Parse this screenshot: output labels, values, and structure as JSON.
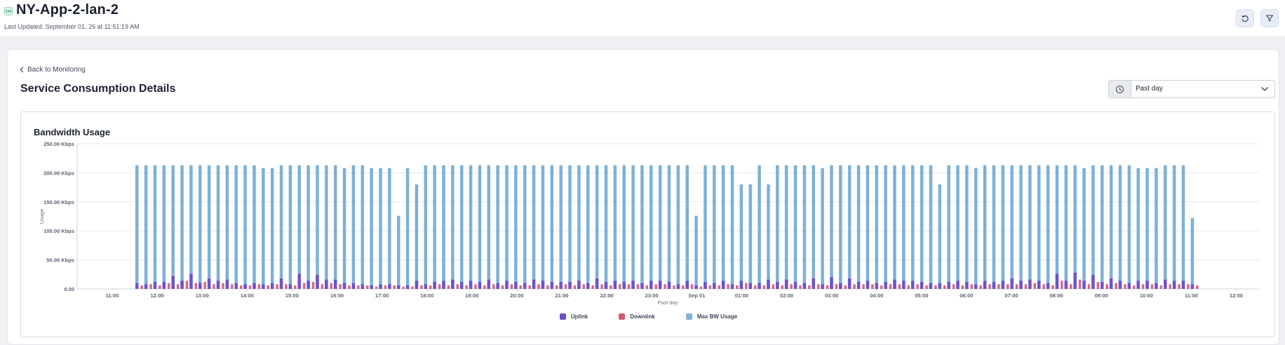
{
  "header": {
    "status_icon": "wireless-signal-icon",
    "title": "NY-App-2-lan-2",
    "last_updated": "Last Updated: September 01, 26 at 11:51:19 AM",
    "refresh_icon": "refresh-icon",
    "filter_icon": "filter-icon"
  },
  "page": {
    "back_label": "Back to Monitoring",
    "title": "Service Consumption Details",
    "range_select": {
      "value": "Past day",
      "icon": "clock-icon"
    }
  },
  "colors": {
    "uplink": "#6a4fc9",
    "downlink": "#d45876",
    "max_bw": "#7fb0d6"
  },
  "chart_data": {
    "type": "bar",
    "title": "Bandwidth Usage",
    "xlabel": "Past day",
    "ylabel": "Usage",
    "ylim": [
      0,
      250
    ],
    "y_ticks": [
      "0.00",
      "50.00 Kbps",
      "100.00 Kbps",
      "150.00 Kbps",
      "200.00 Kbps",
      "250.00 Kbps"
    ],
    "x_ticks": [
      "11:00",
      "12:00",
      "13:00",
      "14:00",
      "15:00",
      "16:00",
      "17:00",
      "18:00",
      "19:00",
      "20:00",
      "21:00",
      "22:00",
      "23:00",
      "Sep 01",
      "01:00",
      "02:00",
      "03:00",
      "04:00",
      "05:00",
      "06:00",
      "07:00",
      "08:00",
      "09:00",
      "10:00",
      "11:00",
      "12:00"
    ],
    "x_start": "2026-08-31T10:30",
    "interval_minutes": 12,
    "grid": true,
    "legend_position": "bottom",
    "series": [
      {
        "name": "Uplink",
        "values": [
          0,
          0,
          0,
          0,
          0,
          0,
          0,
          0,
          0,
          0,
          0,
          10,
          0,
          12,
          0,
          22,
          0,
          26,
          0,
          18,
          0,
          16,
          0,
          0,
          0,
          0,
          0,
          0,
          0,
          0,
          0,
          0,
          0,
          0,
          0,
          0,
          0,
          0,
          0,
          0,
          0,
          0,
          0,
          0,
          0,
          0,
          12,
          0,
          0,
          0,
          0,
          0,
          0,
          0,
          14,
          0,
          0,
          0,
          0,
          0,
          0,
          0,
          0,
          0,
          0,
          18,
          0,
          0,
          0,
          0,
          0,
          0,
          0,
          0,
          0,
          0,
          10,
          0,
          0,
          0,
          0,
          0,
          0,
          0,
          0,
          0,
          10,
          0,
          8,
          0,
          0,
          0,
          0,
          0,
          14,
          0,
          0,
          0,
          0,
          0,
          0,
          0,
          0,
          0,
          0,
          0,
          0,
          0,
          0,
          0,
          0,
          0,
          0,
          0,
          0,
          0,
          0,
          0,
          0,
          0,
          0,
          0,
          0,
          12,
          0,
          12,
          0,
          0,
          0,
          0,
          0,
          0,
          0,
          0,
          0,
          0,
          0,
          0,
          0,
          0,
          0,
          0,
          0,
          0,
          0,
          0,
          0,
          0,
          0,
          0,
          0,
          0,
          0,
          0,
          0,
          0,
          0,
          0,
          0,
          0,
          0,
          0,
          0,
          26,
          0,
          0,
          0,
          0,
          0,
          0,
          0,
          0,
          0,
          10,
          0,
          12,
          0,
          0,
          0,
          0,
          0,
          0,
          0,
          0,
          0,
          0,
          0,
          0,
          0,
          0,
          0,
          0,
          0,
          0,
          0,
          0,
          0,
          0,
          0,
          0,
          0,
          0,
          0,
          0,
          0,
          0,
          0,
          0,
          0,
          0,
          0,
          0,
          0,
          0,
          0,
          0,
          0,
          0,
          0,
          0,
          0,
          0,
          0,
          0,
          0,
          0,
          0,
          0,
          0,
          0,
          0,
          0,
          0,
          0,
          0,
          0,
          0,
          0,
          0,
          0,
          0,
          0,
          0,
          0,
          0,
          0,
          0,
          0,
          0,
          0,
          0,
          0,
          0,
          0,
          0,
          0,
          0,
          0,
          0,
          0,
          0,
          0,
          0,
          0,
          0,
          0,
          0,
          0,
          0,
          0,
          0,
          0,
          0,
          0,
          0,
          0,
          0,
          0
        ]
      },
      {
        "name": "Downlink",
        "values": [
          0,
          0,
          0,
          0,
          0,
          0,
          0,
          0,
          0,
          0,
          0,
          0,
          0,
          0,
          0,
          0,
          0,
          0,
          0,
          0,
          0,
          0,
          0,
          0,
          0,
          0,
          0,
          0,
          0,
          0,
          0,
          0,
          0,
          0,
          0,
          0,
          0,
          0,
          0,
          0,
          0,
          0,
          0,
          0,
          0,
          0,
          0,
          0,
          0,
          0,
          0,
          0,
          0,
          0,
          0,
          0,
          0,
          0,
          0,
          0,
          0,
          0,
          0,
          0,
          0,
          0,
          0,
          0,
          0,
          0,
          0,
          0,
          0,
          0,
          0,
          0,
          0,
          0,
          0,
          0,
          0,
          0,
          0,
          0,
          0,
          0,
          0,
          0,
          0,
          0,
          0,
          0,
          0,
          0,
          0,
          0,
          0,
          0,
          0,
          0,
          0,
          0,
          0,
          0,
          0,
          0,
          0,
          0,
          0,
          0,
          0,
          0,
          0,
          0,
          0,
          0,
          0,
          0,
          0,
          0,
          0,
          0,
          0,
          0,
          0,
          0,
          0,
          0,
          0,
          0,
          0,
          0,
          0,
          0,
          0,
          0,
          0,
          0,
          0,
          0,
          0,
          0,
          0,
          0,
          0,
          0,
          0,
          0,
          0,
          0,
          0,
          0,
          0,
          0,
          0,
          0,
          0,
          0,
          0,
          0,
          0,
          0,
          0,
          0,
          0,
          0,
          0,
          0,
          0,
          0,
          0,
          0,
          0,
          0,
          0,
          0,
          0,
          0,
          0,
          0,
          0,
          0,
          0,
          0,
          0,
          0,
          0,
          0,
          0,
          0,
          0,
          0,
          0,
          0,
          0,
          0,
          0,
          0,
          0,
          0,
          0,
          0,
          0,
          0,
          0,
          0,
          0,
          0,
          0,
          0,
          0,
          0,
          0,
          0,
          0,
          0,
          0,
          0,
          0,
          0,
          0,
          0,
          0,
          0,
          0,
          0,
          0,
          0,
          0,
          0,
          0,
          0,
          0,
          0,
          0,
          0,
          0,
          0,
          0,
          0,
          0,
          0,
          0,
          0,
          0,
          0,
          0,
          0,
          0,
          0,
          0,
          0,
          0,
          0,
          0,
          0,
          0,
          0,
          0,
          0,
          0,
          0,
          0,
          0,
          0,
          0,
          0,
          0
        ]
      },
      {
        "name": "Max BW Usage",
        "values": []
      }
    ],
    "bars": {
      "max_bw": [
        213,
        213,
        213,
        213,
        213,
        213,
        213,
        213,
        213,
        213,
        213,
        213,
        213,
        213,
        208,
        208,
        213,
        213,
        213,
        213,
        213,
        213,
        213,
        208,
        213,
        213,
        208,
        208,
        208,
        126,
        208,
        180,
        213,
        213,
        213,
        213,
        213,
        213,
        213,
        213,
        213,
        213,
        213,
        213,
        213,
        213,
        213,
        213,
        213,
        213,
        213,
        213,
        213,
        213,
        213,
        213,
        213,
        213,
        213,
        213,
        213,
        213,
        126,
        213,
        213,
        213,
        213,
        180,
        180,
        213,
        180,
        213,
        213,
        213,
        213,
        213,
        208,
        213,
        213,
        213,
        213,
        213,
        213,
        213,
        213,
        213,
        213,
        213,
        213,
        180,
        213,
        213,
        213,
        208,
        213,
        213,
        213,
        213,
        213,
        213,
        213,
        213,
        213,
        213,
        213,
        208,
        213,
        213,
        213,
        213,
        213,
        208,
        208,
        208,
        213,
        213,
        213,
        122
      ],
      "uplink": [
        10,
        8,
        12,
        12,
        22,
        14,
        26,
        10,
        18,
        14,
        16,
        10,
        8,
        10,
        8,
        10,
        18,
        8,
        26,
        14,
        24,
        16,
        16,
        10,
        10,
        8,
        6,
        8,
        8,
        6,
        6,
        14,
        8,
        12,
        14,
        16,
        12,
        14,
        12,
        16,
        10,
        14,
        12,
        10,
        16,
        14,
        12,
        12,
        12,
        14,
        10,
        18,
        12,
        14,
        12,
        14,
        10,
        14,
        14,
        12,
        8,
        14,
        6,
        12,
        10,
        14,
        8,
        14,
        10,
        10,
        16,
        12,
        16,
        12,
        10,
        18,
        8,
        20,
        10,
        18,
        12,
        14,
        10,
        12,
        16,
        14,
        14,
        12,
        10,
        10,
        12,
        14,
        12,
        8,
        14,
        12,
        14,
        18,
        14,
        16,
        14,
        10,
        26,
        14,
        28,
        14,
        24,
        12,
        18,
        14,
        10,
        14,
        14,
        10,
        16,
        14,
        14,
        8
      ],
      "downlink": [
        6,
        8,
        6,
        10,
        8,
        14,
        10,
        12,
        8,
        10,
        8,
        6,
        6,
        8,
        6,
        8,
        8,
        6,
        10,
        12,
        8,
        10,
        8,
        6,
        6,
        6,
        4,
        6,
        6,
        4,
        4,
        6,
        6,
        8,
        6,
        8,
        6,
        8,
        6,
        8,
        6,
        8,
        6,
        6,
        8,
        6,
        6,
        8,
        6,
        8,
        6,
        8,
        6,
        8,
        8,
        8,
        6,
        8,
        8,
        6,
        6,
        8,
        4,
        6,
        6,
        8,
        6,
        10,
        6,
        6,
        8,
        6,
        8,
        6,
        6,
        8,
        6,
        8,
        6,
        8,
        8,
        8,
        6,
        8,
        8,
        6,
        8,
        6,
        6,
        6,
        8,
        6,
        8,
        6,
        8,
        8,
        8,
        8,
        8,
        10,
        8,
        6,
        14,
        8,
        16,
        8,
        12,
        8,
        10,
        8,
        6,
        8,
        8,
        6,
        8,
        8,
        8,
        6
      ]
    },
    "legend": [
      "Uplink",
      "Downlink",
      "Max BW Usage"
    ]
  }
}
